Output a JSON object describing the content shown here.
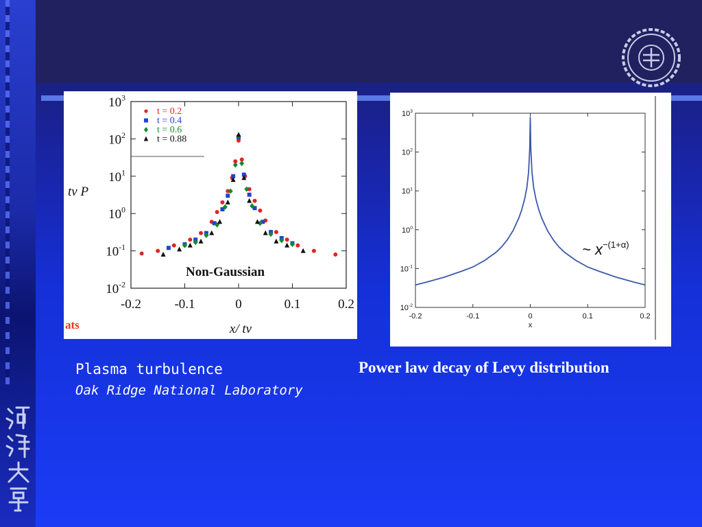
{
  "captions": {
    "left_main": "Plasma turbulence",
    "left_sub": "Oak Ridge National Laboratory",
    "right": "Power law decay of Levy distribution"
  },
  "colors": {
    "series_red": "#e02424",
    "series_blue": "#2244cc",
    "series_green": "#168a2a",
    "series_black": "#111111",
    "curve": "#3a5aa8"
  },
  "logo": {
    "text": "HOHAI UNIVERSITY",
    "icon": "university-seal-icon"
  },
  "left_cut_text": "ats",
  "chart_data": [
    {
      "type": "scatter",
      "ylabel": "t^ν P",
      "xlabel": "x/ t^ν",
      "annotation": "Non-Gaussian",
      "y_scale": "log",
      "xlim": [
        -0.2,
        0.2
      ],
      "ylim": [
        0.01,
        1000
      ],
      "x_ticks": [
        "-0.2",
        "-0.1",
        "0",
        "0.1",
        "0.2"
      ],
      "y_ticks": [
        {
          "base": "10",
          "exp": "3"
        },
        {
          "base": "10",
          "exp": "2"
        },
        {
          "base": "10",
          "exp": "1"
        },
        {
          "base": "10",
          "exp": "0"
        },
        {
          "base": "10",
          "exp": "-1"
        },
        {
          "base": "10",
          "exp": "-2"
        }
      ],
      "legend_position": "top-left",
      "series": [
        {
          "name": "t = 0.2",
          "marker": "circle",
          "color": "#e02424",
          "points": [
            [
              -0.18,
              0.085
            ],
            [
              -0.15,
              0.1
            ],
            [
              -0.12,
              0.14
            ],
            [
              -0.09,
              0.2
            ],
            [
              -0.07,
              0.3
            ],
            [
              -0.05,
              0.6
            ],
            [
              -0.04,
              1.1
            ],
            [
              -0.03,
              2
            ],
            [
              -0.02,
              4
            ],
            [
              -0.012,
              9
            ],
            [
              -0.006,
              25
            ],
            [
              0,
              90
            ],
            [
              0.006,
              28
            ],
            [
              0.012,
              10
            ],
            [
              0.02,
              4.5
            ],
            [
              0.03,
              2.2
            ],
            [
              0.04,
              1.2
            ],
            [
              0.05,
              0.65
            ],
            [
              0.07,
              0.32
            ],
            [
              0.09,
              0.2
            ],
            [
              0.11,
              0.14
            ],
            [
              0.14,
              0.1
            ],
            [
              0.18,
              0.08
            ]
          ]
        },
        {
          "name": "t = 0.4",
          "marker": "square",
          "color": "#2244cc",
          "points": [
            [
              -0.13,
              0.12
            ],
            [
              -0.1,
              0.15
            ],
            [
              -0.08,
              0.2
            ],
            [
              -0.06,
              0.3
            ],
            [
              -0.045,
              0.55
            ],
            [
              -0.03,
              1.3
            ],
            [
              -0.02,
              3
            ],
            [
              -0.01,
              10
            ],
            [
              0,
              110
            ],
            [
              0.01,
              11
            ],
            [
              0.02,
              3.2
            ],
            [
              0.03,
              1.4
            ],
            [
              0.045,
              0.6
            ],
            [
              0.06,
              0.32
            ],
            [
              0.08,
              0.22
            ],
            [
              0.1,
              0.16
            ]
          ]
        },
        {
          "name": "t = 0.6",
          "marker": "diamond",
          "color": "#168a2a",
          "points": [
            [
              -0.1,
              0.14
            ],
            [
              -0.08,
              0.17
            ],
            [
              -0.06,
              0.26
            ],
            [
              -0.04,
              0.5
            ],
            [
              -0.025,
              1.5
            ],
            [
              -0.015,
              4
            ],
            [
              -0.006,
              20
            ],
            [
              0,
              120
            ],
            [
              0.006,
              22
            ],
            [
              0.015,
              4.5
            ],
            [
              0.025,
              1.6
            ],
            [
              0.04,
              0.55
            ],
            [
              0.06,
              0.28
            ],
            [
              0.08,
              0.19
            ],
            [
              0.1,
              0.15
            ]
          ]
        },
        {
          "name": "t = 0.88",
          "marker": "triangle",
          "color": "#111111",
          "points": [
            [
              -0.14,
              0.08
            ],
            [
              -0.11,
              0.11
            ],
            [
              -0.09,
              0.14
            ],
            [
              -0.07,
              0.18
            ],
            [
              -0.05,
              0.3
            ],
            [
              -0.035,
              0.6
            ],
            [
              -0.02,
              2
            ],
            [
              -0.01,
              8
            ],
            [
              0,
              130
            ],
            [
              0.01,
              9
            ],
            [
              0.02,
              2.2
            ],
            [
              0.035,
              0.6
            ],
            [
              0.05,
              0.3
            ],
            [
              0.07,
              0.18
            ],
            [
              0.09,
              0.14
            ],
            [
              0.12,
              0.1
            ]
          ]
        }
      ]
    },
    {
      "type": "line",
      "xlabel": "x",
      "ylabel": "",
      "y_scale": "log",
      "xlim": [
        -0.2,
        0.2
      ],
      "ylim": [
        0.01,
        1000
      ],
      "x_ticks": [
        "-0.2",
        "-0.1",
        "0",
        "0.1",
        "0.2"
      ],
      "y_ticks": [
        {
          "base": "10",
          "exp": "3"
        },
        {
          "base": "10",
          "exp": "2"
        },
        {
          "base": "10",
          "exp": "1"
        },
        {
          "base": "10",
          "exp": "0"
        },
        {
          "base": "10",
          "exp": "-1"
        },
        {
          "base": "10",
          "exp": "-2"
        }
      ],
      "annotation": {
        "prefix": "~ x",
        "exponent": "−(1+α)"
      },
      "series": [
        {
          "color": "#3a5aa8",
          "points": [
            [
              -0.2,
              0.038
            ],
            [
              -0.18,
              0.045
            ],
            [
              -0.15,
              0.06
            ],
            [
              -0.12,
              0.085
            ],
            [
              -0.1,
              0.11
            ],
            [
              -0.08,
              0.16
            ],
            [
              -0.06,
              0.26
            ],
            [
              -0.05,
              0.36
            ],
            [
              -0.04,
              0.55
            ],
            [
              -0.03,
              0.95
            ],
            [
              -0.02,
              2
            ],
            [
              -0.015,
              3.2
            ],
            [
              -0.01,
              6
            ],
            [
              -0.006,
              12
            ],
            [
              -0.003,
              30
            ],
            [
              -0.001,
              120
            ],
            [
              0,
              800
            ],
            [
              0.001,
              120
            ],
            [
              0.003,
              30
            ],
            [
              0.006,
              12
            ],
            [
              0.01,
              6
            ],
            [
              0.015,
              3.2
            ],
            [
              0.02,
              2
            ],
            [
              0.03,
              0.95
            ],
            [
              0.04,
              0.55
            ],
            [
              0.05,
              0.36
            ],
            [
              0.06,
              0.26
            ],
            [
              0.08,
              0.16
            ],
            [
              0.1,
              0.11
            ],
            [
              0.12,
              0.085
            ],
            [
              0.15,
              0.06
            ],
            [
              0.18,
              0.045
            ],
            [
              0.2,
              0.038
            ]
          ]
        }
      ]
    }
  ]
}
